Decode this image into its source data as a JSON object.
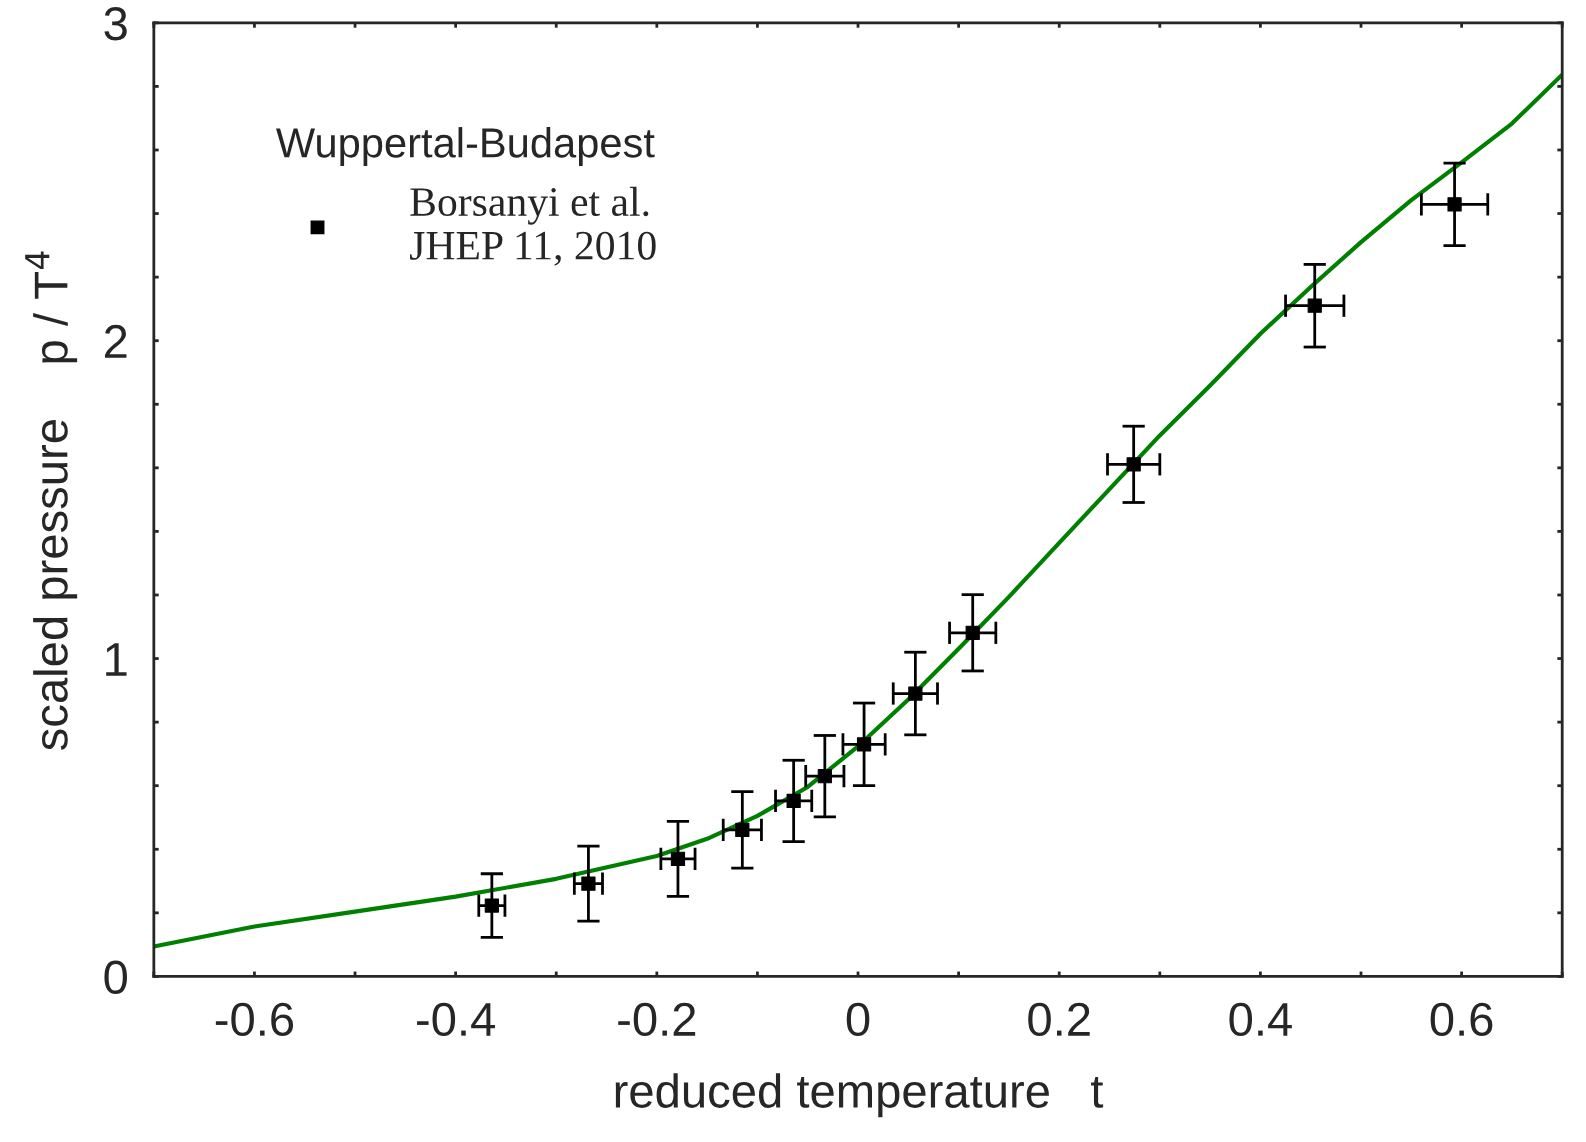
{
  "chart_data": {
    "type": "scatter",
    "xlabel": "reduced temperature   t",
    "ylabel": "scaled pressure    p / T$^{4}$",
    "legend_title": "Wuppertal-Budapest",
    "legend": "top left",
    "marker": "square",
    "grid": false,
    "xlim": [
      -0.7,
      0.7
    ],
    "ylim": [
      0,
      3
    ],
    "xticks": [
      {
        "value": -0.7,
        "label": null
      },
      -0.6,
      {
        "value": -0.5,
        "label": null
      },
      -0.4,
      {
        "value": -0.3,
        "label": null
      },
      -0.2,
      {
        "value": -0.1,
        "label": null
      },
      0,
      {
        "value": 0.1,
        "label": null
      },
      0.2,
      {
        "value": 0.3,
        "label": null
      },
      0.4,
      {
        "value": 0.5,
        "label": null
      },
      0.6,
      {
        "value": 0.7,
        "label": null
      }
    ],
    "yticks": [
      0,
      {
        "value": 0.2,
        "label": null
      },
      {
        "value": 0.4,
        "label": null
      },
      {
        "value": 0.6,
        "label": null
      },
      {
        "value": 0.8,
        "label": null
      },
      1,
      {
        "value": 1.2,
        "label": null
      },
      {
        "value": 1.4,
        "label": null
      },
      {
        "value": 1.6,
        "label": null
      },
      {
        "value": 1.8,
        "label": null
      },
      2,
      {
        "value": 2.2,
        "label": null
      },
      {
        "value": 2.4,
        "label": null
      },
      {
        "value": 2.6,
        "label": null
      },
      {
        "value": 2.8,
        "label": null
      },
      3
    ],
    "series": [
      {
        "type": "line",
        "color": "#008000",
        "marker": "none",
        "line_style": "solid",
        "x": [
          -0.7,
          -0.6,
          -0.5,
          -0.4,
          -0.3,
          -0.2,
          -0.15,
          -0.1,
          -0.05,
          0,
          0.05,
          0.1,
          0.15,
          0.2,
          0.25,
          0.3,
          0.35,
          0.4,
          0.45,
          0.5,
          0.55,
          0.6,
          0.65,
          0.7
        ],
        "values": [
          0.094,
          0.157,
          0.204,
          0.251,
          0.307,
          0.379,
          0.433,
          0.505,
          0.596,
          0.724,
          0.871,
          1.031,
          1.194,
          1.364,
          1.533,
          1.702,
          1.859,
          2.022,
          2.169,
          2.31,
          2.442,
          2.561,
          2.683,
          2.837
        ]
      },
      {
        "name": "Borsanyi et al.\nJHEP 11, 2010",
        "color": "#000000",
        "x": [
          -0.364,
          -0.268,
          -0.179,
          -0.115,
          -0.064,
          -0.033,
          0.006,
          0.057,
          0.114,
          0.274,
          0.454,
          0.593
        ],
        "values": [
          0.223,
          0.292,
          0.37,
          0.461,
          0.552,
          0.63,
          0.73,
          0.89,
          1.081,
          1.611,
          2.11,
          2.429
        ],
        "errors": [
          0.1,
          0.118,
          0.118,
          0.12,
          0.128,
          0.128,
          0.13,
          0.13,
          0.12,
          0.12,
          0.13,
          0.13
        ],
        "xerrors": [
          0.013,
          0.014,
          0.017,
          0.019,
          0.018,
          0.019,
          0.021,
          0.022,
          0.023,
          0.026,
          0.029,
          0.033
        ]
      }
    ]
  }
}
